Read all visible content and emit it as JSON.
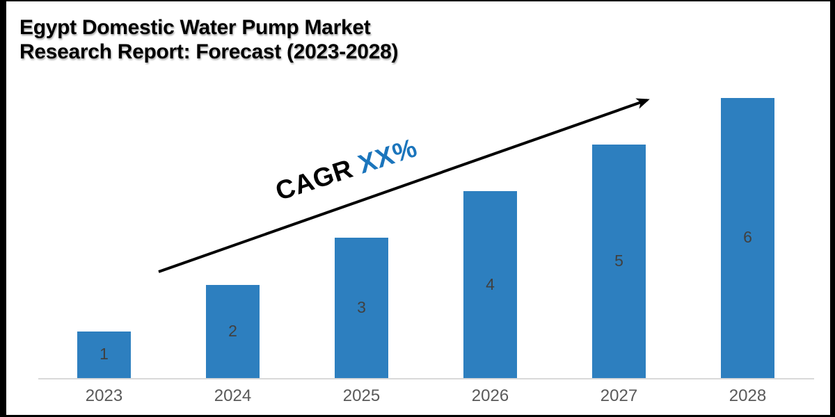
{
  "title": {
    "line1": "Egypt Domestic Water Pump Market",
    "line2": "Research Report: Forecast (2023-2028)"
  },
  "cagr": {
    "prefix": "CAGR ",
    "value": "XX%",
    "prefix_color": "#000000",
    "value_color": "#1B75BC"
  },
  "chart_data": {
    "type": "bar",
    "title": "Egypt Domestic Water Pump Market Research Report: Forecast (2023-2028)",
    "categories": [
      "2023",
      "2024",
      "2025",
      "2026",
      "2027",
      "2028"
    ],
    "values": [
      1,
      2,
      3,
      4,
      5,
      6
    ],
    "xlabel": "",
    "ylabel": "",
    "ylim": [
      0,
      6
    ],
    "grid": false,
    "legend": false,
    "data_labels": true,
    "annotation": "CAGR XX%",
    "annotation_arrow": true,
    "bar_color": "#2D7FBF",
    "data_label_color": "#404040",
    "tick_label_color": "#595959",
    "axis_line_color": "#D9D9D9",
    "arrow_color": "#000000"
  }
}
